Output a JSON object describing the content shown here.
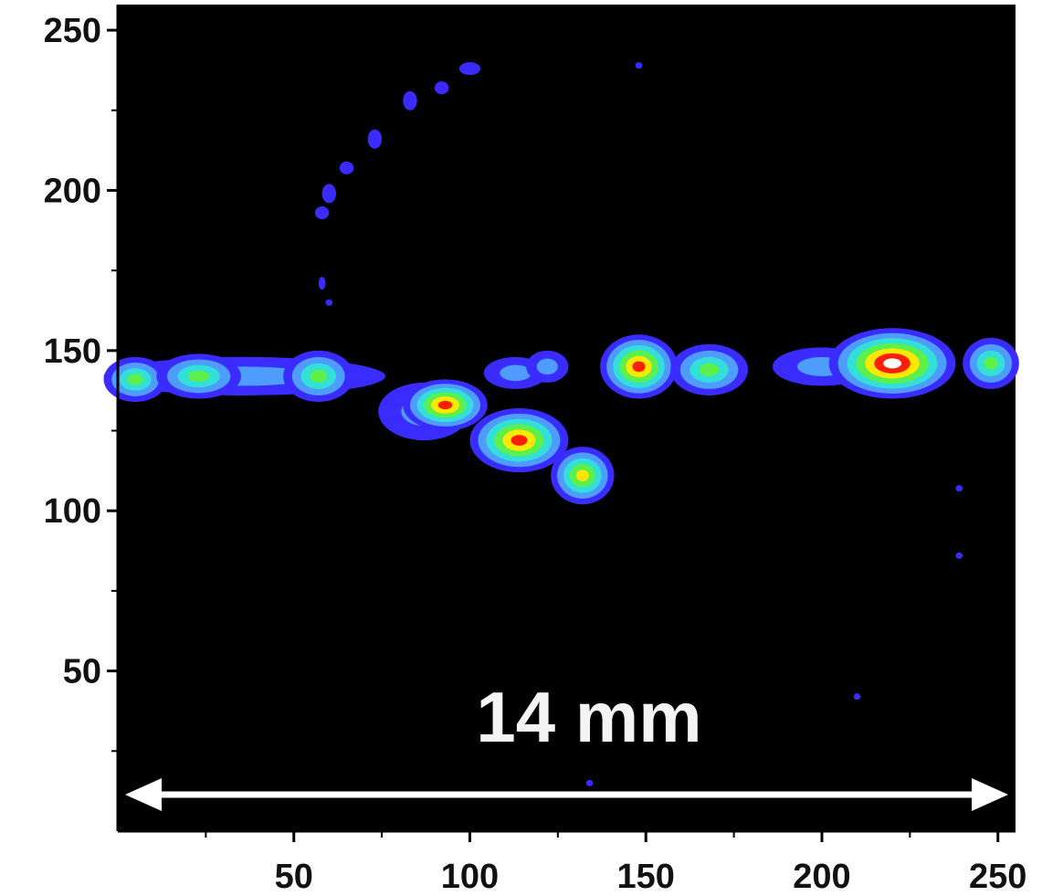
{
  "chart_data": {
    "type": "heatmap",
    "annotation": "14 mm",
    "xlim": [
      0,
      255
    ],
    "ylim": [
      0,
      258
    ],
    "xticks": [
      50,
      100,
      150,
      200,
      250
    ],
    "yticks": [
      50,
      100,
      150,
      200,
      250
    ],
    "xminorticks": [
      25,
      75,
      125,
      175,
      225
    ],
    "yminorticks": [
      25,
      75,
      125,
      175,
      225
    ],
    "background": "#000000",
    "colormap": [
      "#3a2cff",
      "#4f9cff",
      "#33e0d8",
      "#5ef04a",
      "#ffe800",
      "#ff1e00",
      "#ffffff"
    ],
    "spots": [
      {
        "x": 36,
        "y": 142,
        "rx": 40,
        "ry": 6,
        "level": 1
      },
      {
        "x": 200,
        "y": 145,
        "rx": 14,
        "ry": 6,
        "level": 1
      },
      {
        "x": 87,
        "y": 131,
        "rx": 13,
        "ry": 9,
        "level": 1
      },
      {
        "x": 113,
        "y": 143,
        "rx": 9,
        "ry": 5,
        "level": 1
      },
      {
        "x": 122,
        "y": 145,
        "rx": 6,
        "ry": 5,
        "level": 1
      },
      {
        "x": 5,
        "y": 141,
        "rx": 9,
        "ry": 7,
        "level": 3
      },
      {
        "x": 23,
        "y": 142,
        "rx": 12,
        "ry": 7,
        "level": 3
      },
      {
        "x": 57,
        "y": 142,
        "rx": 10,
        "ry": 8,
        "level": 3
      },
      {
        "x": 93,
        "y": 133,
        "rx": 12,
        "ry": 8,
        "level": 5
      },
      {
        "x": 114,
        "y": 122,
        "rx": 14,
        "ry": 10,
        "level": 5
      },
      {
        "x": 132,
        "y": 111,
        "rx": 9,
        "ry": 9,
        "level": 4
      },
      {
        "x": 148,
        "y": 145,
        "rx": 11,
        "ry": 10,
        "level": 5
      },
      {
        "x": 168,
        "y": 144,
        "rx": 11,
        "ry": 8,
        "level": 3
      },
      {
        "x": 220,
        "y": 146,
        "rx": 18,
        "ry": 11,
        "level": 6
      },
      {
        "x": 248,
        "y": 146,
        "rx": 8,
        "ry": 8,
        "level": 3
      },
      {
        "x": 100,
        "y": 238,
        "rx": 3,
        "ry": 2,
        "level": 0
      },
      {
        "x": 92,
        "y": 232,
        "rx": 2,
        "ry": 2,
        "level": 0
      },
      {
        "x": 83,
        "y": 228,
        "rx": 2,
        "ry": 3,
        "level": 0
      },
      {
        "x": 73,
        "y": 216,
        "rx": 2,
        "ry": 3,
        "level": 0
      },
      {
        "x": 65,
        "y": 207,
        "rx": 2,
        "ry": 2,
        "level": 0
      },
      {
        "x": 60,
        "y": 199,
        "rx": 2,
        "ry": 3,
        "level": 0
      },
      {
        "x": 58,
        "y": 193,
        "rx": 2,
        "ry": 2,
        "level": 0
      },
      {
        "x": 58,
        "y": 171,
        "rx": 1,
        "ry": 2,
        "level": 0
      },
      {
        "x": 60,
        "y": 165,
        "rx": 1,
        "ry": 1,
        "level": 0
      },
      {
        "x": 210,
        "y": 42,
        "rx": 1,
        "ry": 1,
        "level": 0
      },
      {
        "x": 239,
        "y": 107,
        "rx": 1,
        "ry": 1,
        "level": 0
      },
      {
        "x": 239,
        "y": 86,
        "rx": 1,
        "ry": 1,
        "level": 0
      },
      {
        "x": 134,
        "y": 15,
        "rx": 1,
        "ry": 1,
        "level": 0
      },
      {
        "x": 148,
        "y": 239,
        "rx": 1,
        "ry": 1,
        "level": 0
      }
    ]
  }
}
